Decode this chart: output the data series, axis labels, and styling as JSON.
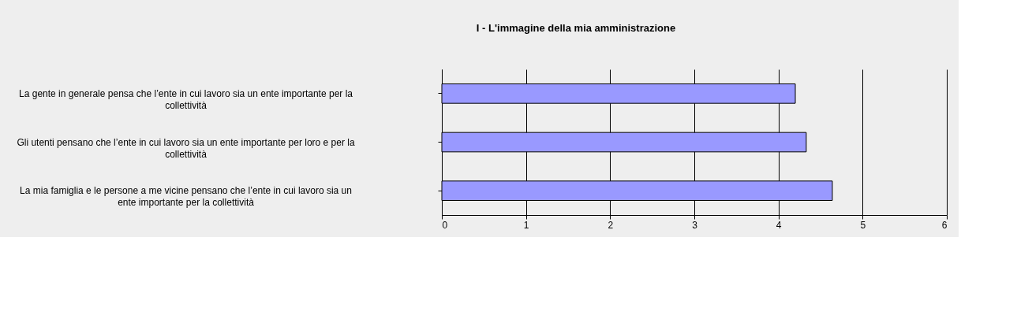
{
  "chart_data": {
    "type": "bar",
    "orientation": "horizontal",
    "title": "I - L'immagine della mia amministrazione",
    "categories": [
      "La gente in generale pensa che l’ente in cui lavoro sia un ente importante per la collettività",
      "Gli utenti pensano che l’ente in cui lavoro sia un ente importante per loro e per la collettività",
      "La mia famiglia e le persone a me vicine pensano che l’ente in cui lavoro sia un ente importante per la collettività"
    ],
    "values": [
      4.2,
      4.33,
      4.64
    ],
    "color": "#9999ff",
    "xlim": [
      0,
      6
    ],
    "xticks": [
      0,
      1,
      2,
      3,
      4,
      5,
      6
    ],
    "grid": "x"
  }
}
